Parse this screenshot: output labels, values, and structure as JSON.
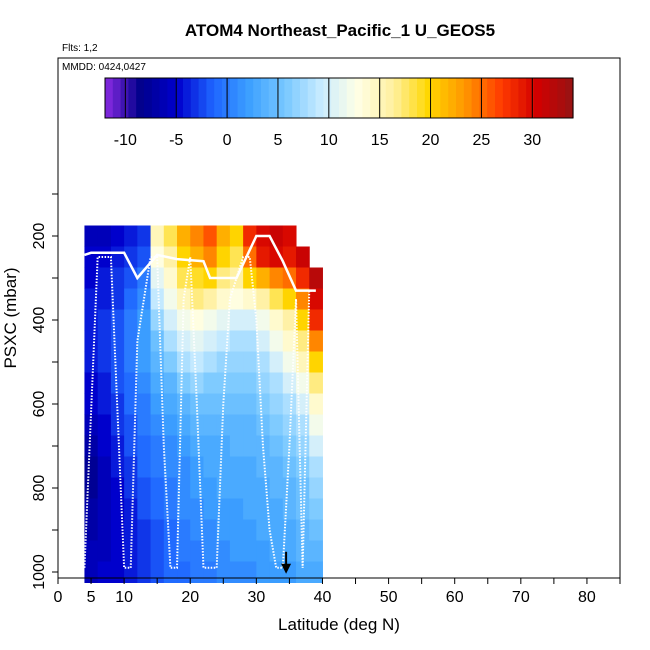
{
  "chart_data": {
    "type": "heatmap",
    "title": "ATOM4 Northeast_Pacific_1 U_GEOS5",
    "subtitle_flights": "Flts: 1,2",
    "subtitle_dates": "MMDD: 0424,0427",
    "xlabel": "Latitude (deg N)",
    "ylabel": "PSXC (mbar)",
    "xlim": [
      0,
      85
    ],
    "ylim": [
      1010,
      0
    ],
    "x_ticks": [
      "0",
      "5",
      "10",
      "20",
      "30",
      "40",
      "50",
      "60",
      "70",
      "80"
    ],
    "y_ticks": [
      "200",
      "400",
      "600",
      "800",
      "1000"
    ],
    "colorbar": {
      "range": [
        -12,
        34
      ],
      "ticks": [
        "-10",
        "-5",
        "0",
        "5",
        "10",
        "15",
        "20",
        "25",
        "30"
      ],
      "colors": [
        "#8a2be2",
        "#00008b",
        "#0000cd",
        "#1e64ff",
        "#3ca0ff",
        "#78c8ff",
        "#c8ebff",
        "#ffffe6",
        "#fff0a0",
        "#ffd700",
        "#ff9600",
        "#ff3c00",
        "#d20000",
        "#961414"
      ]
    },
    "latitude_bins": [
      4,
      6,
      8,
      10,
      12,
      14,
      16,
      18,
      20,
      22,
      24,
      26,
      28,
      30,
      32,
      34,
      36,
      38
    ],
    "pressure_levels": [
      200,
      250,
      300,
      350,
      400,
      450,
      500,
      550,
      600,
      650,
      700,
      750,
      800,
      850,
      900,
      950,
      1000
    ],
    "wind_u_ms": [
      [
        -6,
        -6,
        -5,
        -4,
        -3,
        15,
        18,
        22,
        24,
        26,
        22,
        20,
        28,
        30,
        31,
        30,
        null,
        null
      ],
      [
        -5,
        -5,
        -4,
        -3,
        -2,
        13,
        16,
        20,
        22,
        24,
        20,
        18,
        25,
        29,
        30,
        29,
        31,
        null
      ],
      [
        -5,
        -4,
        -3,
        -2,
        0,
        11,
        14,
        18,
        19,
        20,
        17,
        16,
        20,
        22,
        24,
        25,
        28,
        32
      ],
      [
        -4,
        -4,
        -3,
        -1,
        1,
        9,
        12,
        15,
        17,
        16,
        14,
        13,
        14,
        16,
        18,
        20,
        24,
        30
      ],
      [
        -4,
        -3,
        -2,
        0,
        2,
        7,
        10,
        12,
        13,
        12,
        11,
        10,
        10,
        12,
        14,
        16,
        20,
        28
      ],
      [
        -4,
        -3,
        -2,
        0,
        2,
        5,
        8,
        10,
        11,
        10,
        9,
        8,
        8,
        10,
        12,
        14,
        17,
        24
      ],
      [
        -4,
        -3,
        -2,
        0,
        2,
        4,
        6,
        8,
        9,
        8,
        7,
        7,
        7,
        8,
        10,
        12,
        15,
        20
      ],
      [
        -5,
        -4,
        -2,
        -1,
        1,
        3,
        4,
        6,
        7,
        6,
        6,
        6,
        6,
        7,
        8,
        10,
        12,
        17
      ],
      [
        -5,
        -4,
        -3,
        -1,
        0,
        2,
        3,
        4,
        5,
        5,
        5,
        5,
        5,
        6,
        7,
        8,
        10,
        14
      ],
      [
        -6,
        -5,
        -3,
        -2,
        0,
        1,
        2,
        3,
        4,
        4,
        4,
        4,
        4,
        5,
        6,
        7,
        8,
        12
      ],
      [
        -7,
        -5,
        -4,
        -2,
        -1,
        0,
        1,
        2,
        3,
        3,
        3,
        4,
        4,
        4,
        5,
        6,
        7,
        10
      ],
      [
        -8,
        -6,
        -4,
        -3,
        -1,
        0,
        1,
        1,
        2,
        3,
        3,
        3,
        3,
        4,
        4,
        5,
        6,
        8
      ],
      [
        -8,
        -6,
        -5,
        -3,
        -2,
        -1,
        0,
        1,
        2,
        2,
        3,
        3,
        3,
        3,
        4,
        4,
        5,
        7
      ],
      [
        -7,
        -6,
        -5,
        -4,
        -2,
        -1,
        0,
        1,
        1,
        2,
        2,
        2,
        3,
        3,
        3,
        4,
        5,
        6
      ],
      [
        -7,
        -6,
        -5,
        -4,
        -3,
        -2,
        -1,
        0,
        1,
        1,
        2,
        2,
        2,
        3,
        3,
        3,
        4,
        5
      ],
      [
        -6,
        -6,
        -5,
        -4,
        -3,
        -2,
        -1,
        0,
        0,
        1,
        1,
        2,
        2,
        2,
        3,
        3,
        4,
        4
      ],
      [
        -6,
        -5,
        -5,
        -4,
        -3,
        -2,
        -1,
        -1,
        0,
        0,
        1,
        1,
        1,
        2,
        2,
        2,
        3,
        3
      ]
    ],
    "tropopause_line": {
      "x": [
        4,
        5,
        7,
        10,
        12,
        15,
        18,
        22,
        23,
        27,
        30,
        32,
        34,
        36,
        38,
        39
      ],
      "y": [
        245,
        240,
        240,
        240,
        300,
        245,
        255,
        260,
        300,
        300,
        200,
        200,
        260,
        330,
        330,
        330
      ]
    },
    "flight_track": {
      "x": [
        4,
        6,
        8,
        10,
        11,
        12,
        14,
        15,
        16,
        17,
        18,
        19,
        20,
        21,
        22,
        24,
        25,
        26,
        28,
        29,
        30,
        31,
        32,
        33,
        34,
        35,
        36,
        37,
        38,
        39
      ],
      "y": [
        990,
        250,
        250,
        990,
        990,
        450,
        250,
        250,
        700,
        990,
        990,
        350,
        250,
        600,
        990,
        990,
        600,
        350,
        250,
        250,
        400,
        700,
        900,
        990,
        990,
        700,
        350,
        990,
        330,
        330
      ]
    },
    "arrow_marker": {
      "x": 34.5,
      "y": 990
    }
  }
}
